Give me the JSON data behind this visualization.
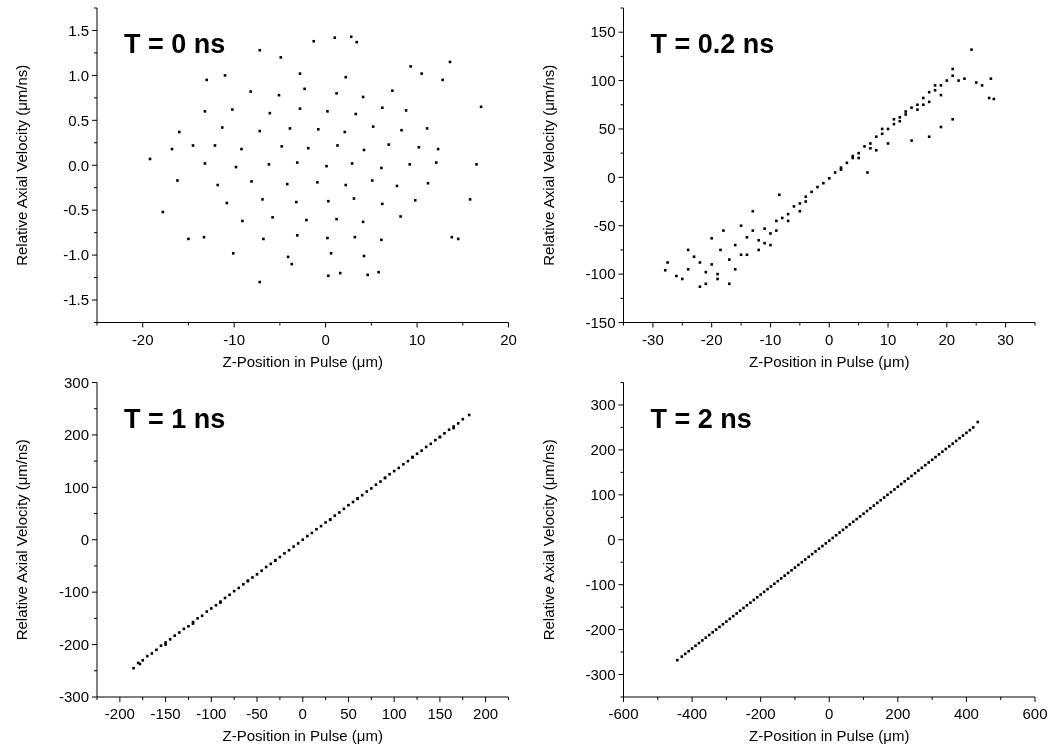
{
  "chart_data": [
    {
      "type": "scatter",
      "title": "T = 0 ns",
      "xlabel": "Z-Position in Pulse (μm)",
      "ylabel": "Relative Axial Velocity (μm/ns)",
      "marker": "square",
      "xlim": [
        -25,
        20
      ],
      "ylim": [
        -1.75,
        1.75
      ],
      "xticks": [
        {
          "value": -25,
          "label": null
        },
        -20,
        {
          "value": -15,
          "label": null
        },
        -10,
        {
          "value": -5,
          "label": null
        },
        0,
        {
          "value": 5,
          "label": null
        },
        10,
        {
          "value": 15,
          "label": null
        },
        20
      ],
      "yticks": [
        {
          "value": -1.75,
          "label": null
        },
        {
          "value": -1.5,
          "label": "-1.5"
        },
        {
          "value": -1.25,
          "label": null
        },
        {
          "value": -1,
          "label": "-1.0"
        },
        {
          "value": -0.75,
          "label": null
        },
        {
          "value": -0.5,
          "label": "-0.5"
        },
        {
          "value": -0.25,
          "label": null
        },
        {
          "value": 0,
          "label": "0.0"
        },
        {
          "value": 0.25,
          "label": null
        },
        {
          "value": 0.5,
          "label": "0.5"
        },
        {
          "value": 0.75,
          "label": null
        },
        {
          "value": 1,
          "label": "1.0"
        },
        {
          "value": 1.25,
          "label": null
        },
        {
          "value": 1.5,
          "label": "1.5"
        },
        {
          "value": 1.75,
          "label": null
        }
      ],
      "series": [
        {
          "color": "#000000",
          "x": [
            -19.2,
            -17.8,
            -16.8,
            -16,
            -16.2,
            -15,
            -14.5,
            -13.3,
            -13,
            -13.2,
            -11,
            -10.1,
            -7.2,
            -7.2,
            -4.9,
            -1.3,
            1,
            2.8,
            3.4,
            13.6,
            17,
            16.5,
            15.8,
            14.5,
            13.8,
            4.6,
            0.3,
            1.6,
            5.8,
            -3.7,
            12.8,
            9.3,
            10.5,
            -8.2,
            -5.1,
            -2.3,
            1.2,
            4.1,
            7.3,
            -10.2,
            -6.1,
            -2.8,
            0.2,
            3.3,
            6.2,
            8.8,
            -11.3,
            -7.2,
            -3.9,
            -0.8,
            2.1,
            5.2,
            8.3,
            11.1,
            -12.1,
            -9.2,
            -4.8,
            -1.9,
            1.3,
            4.2,
            6.9,
            10.2,
            12.3,
            -13.2,
            -9.8,
            -6.2,
            -3.1,
            0.1,
            2.9,
            6.1,
            9.2,
            12.1,
            -11.8,
            -8.1,
            -4.2,
            -0.9,
            2.2,
            5.1,
            7.8,
            11.2,
            -10.8,
            -6.9,
            -3.2,
            0.3,
            3.1,
            6.2,
            9.8,
            -9.1,
            -5.8,
            -2.1,
            1.2,
            4.1,
            8.2,
            -6.8,
            -3.1,
            0.2,
            3.2,
            6.1,
            -2.8,
            2.2,
            -4.1,
            0.6,
            4.2
          ],
          "values": [
            0.07,
            -0.52,
            0.18,
            0.37,
            -0.17,
            -0.82,
            0.22,
            -0.8,
            0.95,
            0.6,
            1.0,
            -0.98,
            1.28,
            -1.3,
            1.2,
            1.38,
            1.42,
            1.43,
            1.37,
            1.15,
            0.65,
            0.01,
            -0.38,
            -0.82,
            -0.8,
            -1.22,
            -1.23,
            -1.2,
            -1.19,
            -1.1,
            0.95,
            1.1,
            1.02,
            0.82,
            0.78,
            0.85,
            0.8,
            0.76,
            0.83,
            0.62,
            0.58,
            0.63,
            0.6,
            0.57,
            0.64,
            0.61,
            0.42,
            0.38,
            0.41,
            0.4,
            0.37,
            0.43,
            0.39,
            0.41,
            0.22,
            0.18,
            0.21,
            0.19,
            0.22,
            0.17,
            0.23,
            0.2,
            0.18,
            0.02,
            -0.02,
            0.01,
            0.03,
            -0.01,
            0.02,
            -0.03,
            0.01,
            0.03,
            -0.22,
            -0.18,
            -0.21,
            -0.19,
            -0.22,
            -0.17,
            -0.23,
            -0.2,
            -0.42,
            -0.38,
            -0.41,
            -0.4,
            -0.37,
            -0.43,
            -0.39,
            -0.62,
            -0.58,
            -0.61,
            -0.6,
            -0.63,
            -0.57,
            -0.82,
            -0.78,
            -0.81,
            -0.8,
            -0.83,
            1.02,
            0.98,
            -1.02,
            -0.98,
            -1.01
          ]
        }
      ]
    },
    {
      "type": "scatter",
      "title": "T = 0.2 ns",
      "xlabel": "Z-Position in Pulse (μm)",
      "ylabel": "Relative Axial Velocity (μm/ns)",
      "marker": "square",
      "xlim": [
        -35,
        35
      ],
      "ylim": [
        -150,
        175
      ],
      "xticks": [
        {
          "value": -35,
          "label": null
        },
        -30,
        {
          "value": -25,
          "label": null
        },
        -20,
        {
          "value": -15,
          "label": null
        },
        -10,
        {
          "value": -5,
          "label": null
        },
        0,
        {
          "value": 5,
          "label": null
        },
        10,
        {
          "value": 15,
          "label": null
        },
        20,
        {
          "value": 25,
          "label": null
        },
        30,
        {
          "value": 35,
          "label": null
        }
      ],
      "yticks": [
        -150,
        {
          "value": -125,
          "label": null
        },
        -100,
        {
          "value": -75,
          "label": null
        },
        -50,
        {
          "value": -25,
          "label": null
        },
        0,
        {
          "value": 25,
          "label": null
        },
        50,
        {
          "value": 75,
          "label": null
        },
        100,
        {
          "value": 125,
          "label": null
        },
        150,
        {
          "value": 175,
          "label": null
        }
      ],
      "series": [
        {
          "color": "#000000",
          "x": [
            -27.9,
            -27.5,
            -26,
            -25,
            -24,
            -23,
            -22,
            -21,
            -21,
            -20,
            -19,
            -18.5,
            -17,
            -17,
            -16,
            -15,
            -14,
            -13,
            -12,
            -11,
            -10,
            -9,
            -8,
            -7,
            -6,
            -5,
            -4,
            -3,
            -2,
            -1,
            0,
            1,
            2,
            3,
            4,
            5,
            6,
            6.5,
            7,
            8,
            9,
            10,
            11,
            12,
            13,
            14,
            15,
            16,
            17,
            18,
            19,
            20,
            21,
            22,
            23,
            24.2,
            25,
            26,
            27.2,
            28,
            27.5,
            21,
            17,
            19,
            14,
            10,
            8,
            -18,
            -15,
            -13,
            -8.5,
            -20,
            -22,
            -24,
            -10,
            -12,
            -5,
            5,
            -19,
            -16,
            -14,
            -11,
            -9,
            -7,
            -4,
            2,
            4,
            7,
            9,
            11,
            13,
            15,
            17,
            19,
            21,
            12,
            16,
            18
          ],
          "values": [
            -96,
            -88,
            -102,
            -105,
            -95,
            -82,
            -113,
            -110,
            -98,
            -90,
            -100,
            -75,
            -110,
            -85,
            -70,
            -80,
            -62,
            -55,
            -65,
            -53,
            -58,
            -45,
            -42,
            -38,
            -30,
            -27,
            -20,
            -15,
            -10,
            -6,
            -1,
            5,
            10,
            15,
            20,
            25,
            32,
            5,
            35,
            42,
            45,
            50,
            55,
            62,
            68,
            72,
            75,
            82,
            88,
            90,
            95,
            100,
            105,
            100,
            102,
            132,
            98,
            95,
            82,
            81,
            102,
            60,
            42,
            52,
            38,
            35,
            28,
            -55,
            -50,
            -35,
            -18,
            -63,
            -88,
            -75,
            -70,
            -75,
            -35,
            20,
            -105,
            -95,
            -80,
            -68,
            -55,
            -45,
            -25,
            8,
            22,
            30,
            50,
            60,
            65,
            70,
            78,
            85,
            112,
            58,
            75,
            95
          ]
        }
      ]
    },
    {
      "type": "scatter",
      "title": "T = 1 ns",
      "xlabel": "Z-Position in Pulse (μm)",
      "ylabel": "Relative Axial Velocity (μm/ns)",
      "marker": "square",
      "xlim": [
        -225,
        225
      ],
      "ylim": [
        -300,
        300
      ],
      "xticks": [
        {
          "value": -225,
          "label": null
        },
        -200,
        {
          "value": -175,
          "label": null
        },
        -150,
        {
          "value": -125,
          "label": null
        },
        -100,
        {
          "value": -75,
          "label": null
        },
        -50,
        {
          "value": -25,
          "label": null
        },
        0,
        {
          "value": 25,
          "label": null
        },
        50,
        {
          "value": 75,
          "label": null
        },
        100,
        {
          "value": 125,
          "label": null
        },
        150,
        {
          "value": 175,
          "label": null
        },
        200,
        {
          "value": 225,
          "label": null
        }
      ],
      "yticks": [
        -300,
        {
          "value": -250,
          "label": null
        },
        -200,
        {
          "value": -150,
          "label": null
        },
        -100,
        {
          "value": -50,
          "label": null
        },
        0,
        {
          "value": 50,
          "label": null
        },
        100,
        {
          "value": 150,
          "label": null
        },
        200,
        {
          "value": 250,
          "label": null
        },
        300
      ],
      "series": [
        {
          "color": "#000000",
          "x": [
            -185,
            -180,
            -175,
            -170,
            -165,
            -160,
            -155,
            -150,
            -145,
            -140,
            -135,
            -130,
            -125,
            -120,
            -115,
            -110,
            -105,
            -100,
            -95,
            -90,
            -85,
            -80,
            -75,
            -70,
            -65,
            -60,
            -55,
            -50,
            -45,
            -40,
            -35,
            -30,
            -25,
            -20,
            -15,
            -10,
            -5,
            0,
            5,
            10,
            15,
            20,
            25,
            30,
            35,
            40,
            45,
            50,
            55,
            60,
            65,
            70,
            75,
            80,
            85,
            90,
            95,
            100,
            105,
            110,
            115,
            120,
            125,
            130,
            135,
            140,
            145,
            150,
            155,
            160,
            165,
            170,
            175,
            182,
            -178,
            -150,
            -120,
            -90,
            -60,
            -30,
            30,
            60,
            90,
            120,
            150,
            165
          ],
          "values": [
            -245,
            -235,
            -230,
            -222,
            -217,
            -210,
            -202,
            -196,
            -190,
            -183,
            -177,
            -170,
            -165,
            -157,
            -150,
            -145,
            -137,
            -131,
            -125,
            -118,
            -111,
            -105,
            -98,
            -92,
            -85,
            -79,
            -72,
            -66,
            -59,
            -52,
            -46,
            -39,
            -33,
            -26,
            -20,
            -13,
            -7,
            0,
            7,
            13,
            20,
            26,
            33,
            39,
            46,
            52,
            59,
            66,
            72,
            79,
            85,
            92,
            98,
            105,
            111,
            118,
            125,
            131,
            137,
            144,
            150,
            157,
            164,
            170,
            177,
            183,
            190,
            196,
            203,
            210,
            216,
            222,
            230,
            238,
            -237,
            -200,
            -160,
            -120,
            -78,
            -40,
            38,
            78,
            118,
            158,
            196,
            213
          ]
        }
      ]
    },
    {
      "type": "scatter",
      "title": "T = 2 ns",
      "xlabel": "Z-Position in Pulse (μm)",
      "ylabel": "Relative Axial Velocity (μm/ns)",
      "marker": "square",
      "xlim": [
        -600,
        600
      ],
      "ylim": [
        -350,
        350
      ],
      "xticks": [
        -600,
        {
          "value": -500,
          "label": null
        },
        -400,
        {
          "value": -300,
          "label": null
        },
        -200,
        {
          "value": -100,
          "label": null
        },
        0,
        {
          "value": 100,
          "label": null
        },
        200,
        {
          "value": 300,
          "label": null
        },
        400,
        {
          "value": 500,
          "label": null
        },
        600
      ],
      "yticks": [
        {
          "value": -350,
          "label": null
        },
        -300,
        {
          "value": -250,
          "label": null
        },
        -200,
        {
          "value": -150,
          "label": null
        },
        -100,
        {
          "value": -50,
          "label": null
        },
        0,
        {
          "value": 50,
          "label": null
        },
        100,
        {
          "value": 150,
          "label": null
        },
        200,
        {
          "value": 250,
          "label": null
        },
        300,
        {
          "value": 350,
          "label": null
        }
      ],
      "series": [
        {
          "color": "#000000",
          "x": [
            -443,
            -430,
            -420,
            -410,
            -400,
            -390,
            -380,
            -370,
            -360,
            -350,
            -340,
            -330,
            -320,
            -310,
            -300,
            -290,
            -280,
            -270,
            -260,
            -250,
            -240,
            -230,
            -220,
            -210,
            -200,
            -190,
            -180,
            -170,
            -160,
            -150,
            -140,
            -130,
            -120,
            -110,
            -100,
            -90,
            -80,
            -70,
            -60,
            -50,
            -40,
            -30,
            -20,
            -10,
            0,
            10,
            20,
            30,
            40,
            50,
            60,
            70,
            80,
            90,
            100,
            110,
            120,
            130,
            140,
            150,
            160,
            170,
            180,
            190,
            200,
            210,
            220,
            230,
            240,
            250,
            260,
            270,
            280,
            290,
            300,
            310,
            320,
            330,
            340,
            350,
            360,
            370,
            380,
            390,
            400,
            410,
            420,
            433
          ],
          "values": [
            -268,
            -260,
            -254,
            -248,
            -242,
            -236,
            -230,
            -224,
            -218,
            -212,
            -206,
            -200,
            -194,
            -188,
            -182,
            -176,
            -170,
            -164,
            -158,
            -152,
            -146,
            -140,
            -134,
            -128,
            -122,
            -116,
            -110,
            -104,
            -98,
            -92,
            -86,
            -80,
            -74,
            -68,
            -62,
            -56,
            -50,
            -44,
            -38,
            -32,
            -26,
            -20,
            -14,
            -8,
            -2,
            4,
            10,
            16,
            22,
            28,
            34,
            40,
            46,
            52,
            58,
            64,
            70,
            76,
            82,
            88,
            94,
            100,
            106,
            112,
            118,
            124,
            130,
            136,
            142,
            148,
            154,
            160,
            166,
            172,
            178,
            184,
            190,
            196,
            202,
            208,
            214,
            220,
            226,
            232,
            238,
            244,
            250,
            262
          ]
        }
      ]
    }
  ]
}
